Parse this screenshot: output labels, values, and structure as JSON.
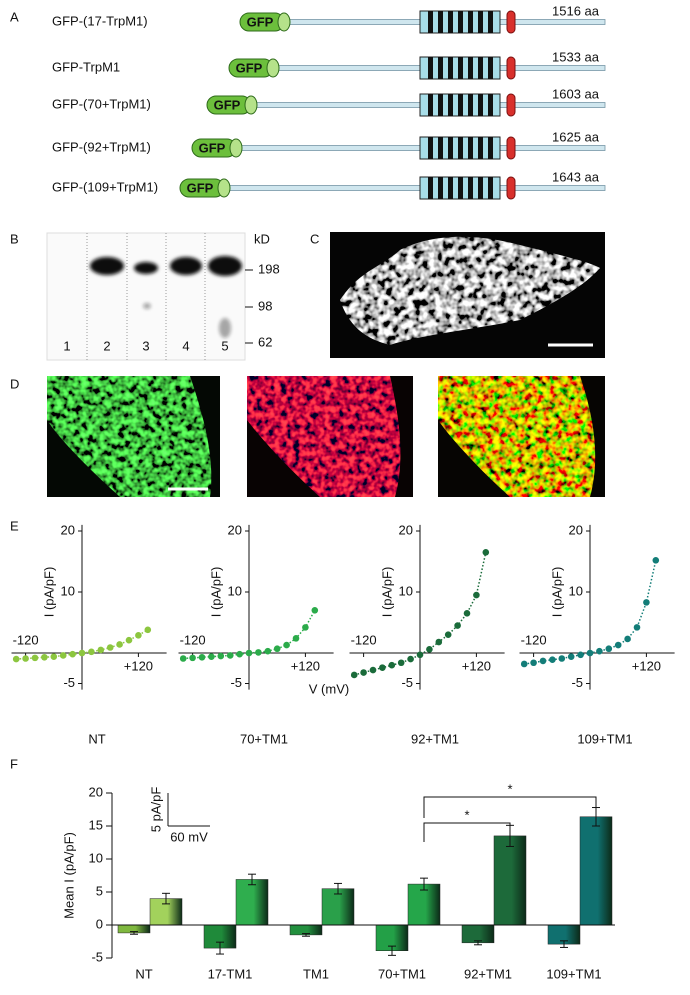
{
  "panel_labels": [
    "A",
    "B",
    "C",
    "D",
    "E",
    "F"
  ],
  "constructs": {
    "gfp_label": "GFP",
    "rows": [
      {
        "name": "GFP-(17-TrpM1)",
        "length": "1516 aa"
      },
      {
        "name": "GFP-TrpM1",
        "length": "1533 aa"
      },
      {
        "name": "GFP-(70+TrpM1)",
        "length": "1603 aa"
      },
      {
        "name": "GFP-(92+TrpM1)",
        "length": "1625 aa"
      },
      {
        "name": "GFP-(109+TrpM1)",
        "length": "1643 aa"
      }
    ]
  },
  "gel": {
    "unit": "kD",
    "markers": [
      198,
      98,
      62
    ],
    "lanes": [
      "1",
      "2",
      "3",
      "4",
      "5"
    ]
  },
  "chart_data": [
    {
      "type": "line",
      "title": "NT",
      "ylabel": "I (pA/pF)",
      "x": [
        -140,
        -120,
        -100,
        -80,
        -60,
        -40,
        -20,
        0,
        20,
        40,
        60,
        80,
        100,
        120,
        140
      ],
      "series": [
        {
          "color": "#8cc63f",
          "values": [
            -1,
            -0.9,
            -0.8,
            -0.7,
            -0.6,
            -0.4,
            -0.2,
            0,
            0.2,
            0.5,
            0.9,
            1.4,
            2.1,
            2.9,
            3.8
          ]
        }
      ],
      "xlim": [
        -150,
        180
      ],
      "ylim": [
        -6,
        21
      ],
      "xticks": [
        -120,
        {
          "value": 120,
          "label": "+120"
        }
      ],
      "yticks": [
        -5,
        10,
        20
      ]
    },
    {
      "type": "line",
      "title": "70+TM1",
      "ylabel": "I (pA/pF)",
      "xlabel": "V (mV)",
      "x": [
        -140,
        -120,
        -100,
        -80,
        -60,
        -40,
        -20,
        0,
        20,
        40,
        60,
        80,
        100,
        120,
        140
      ],
      "series": [
        {
          "color": "#2bab4a",
          "values": [
            -0.9,
            -0.8,
            -0.7,
            -0.6,
            -0.5,
            -0.4,
            -0.2,
            0,
            0.1,
            0.3,
            0.7,
            1.3,
            2.4,
            4.2,
            7
          ]
        }
      ],
      "xlim": [
        -150,
        180
      ],
      "ylim": [
        -6,
        21
      ],
      "xticks": [
        -120,
        {
          "value": 120,
          "label": "+120"
        }
      ],
      "yticks": [
        -5,
        10,
        20
      ]
    },
    {
      "type": "line",
      "title": "92+TM1",
      "ylabel": "I (pA/pF)",
      "x": [
        -140,
        -120,
        -100,
        -80,
        -60,
        -40,
        -20,
        0,
        20,
        40,
        60,
        80,
        100,
        120,
        140
      ],
      "series": [
        {
          "color": "#1a6b3a",
          "values": [
            -3.6,
            -3.2,
            -2.8,
            -2.4,
            -2,
            -1.6,
            -1,
            -0.3,
            0.6,
            1.8,
            3,
            4.5,
            6.5,
            9.5,
            16.5
          ]
        }
      ],
      "xlim": [
        -150,
        180
      ],
      "ylim": [
        -6,
        21
      ],
      "xticks": [
        -120,
        {
          "value": 120,
          "label": "+120"
        }
      ],
      "yticks": [
        -5,
        10,
        20
      ]
    },
    {
      "type": "line",
      "title": "109+TM1",
      "ylabel": "I (pA/pF)",
      "x": [
        -140,
        -120,
        -100,
        -80,
        -60,
        -40,
        -20,
        0,
        20,
        40,
        60,
        80,
        100,
        120,
        140
      ],
      "series": [
        {
          "color": "#137d78",
          "values": [
            -1.8,
            -1.6,
            -1.3,
            -1.1,
            -0.9,
            -0.6,
            -0.3,
            0,
            0.3,
            0.7,
            1.3,
            2.3,
            4.2,
            8.3,
            15.2
          ]
        }
      ],
      "xlim": [
        -150,
        180
      ],
      "ylim": [
        -6,
        21
      ],
      "xticks": [
        -120,
        {
          "value": 120,
          "label": "+120"
        }
      ],
      "yticks": [
        -5,
        10,
        20
      ]
    },
    {
      "type": "bar",
      "ylabel": "Mean I (pA/pF)",
      "categories": [
        "NT",
        "17-TM1",
        "TM1",
        "70+TM1",
        "92+TM1",
        "109+TM1"
      ],
      "series": [
        {
          "colors": [
            "#7fb83f",
            "#1f8a3a",
            "#22903e",
            "#23a047",
            "#1d6a3a",
            "#10706f"
          ],
          "values": [
            -1.2,
            -3.5,
            -1.5,
            -3.9,
            -2.7,
            -2.9
          ],
          "errors": [
            0.2,
            0.9,
            0.2,
            0.7,
            0.3,
            0.5
          ]
        },
        {
          "colors": [
            "#a2d25c",
            "#2fae4e",
            "#2aa04a",
            "#25a64a",
            "#1d6a3a",
            "#10706f"
          ],
          "values": [
            4,
            6.9,
            5.5,
            6.2,
            13.5,
            16.4
          ],
          "errors": [
            0.8,
            0.8,
            0.8,
            0.9,
            1.6,
            1.4
          ]
        }
      ],
      "ylim": [
        -5,
        20
      ],
      "yticks": [
        -5,
        0,
        5,
        10,
        15,
        20
      ],
      "scale_bar": {
        "y_label": "5 pA/pF",
        "x_label": "60 mV"
      },
      "significance": [
        "*",
        "*"
      ]
    }
  ]
}
